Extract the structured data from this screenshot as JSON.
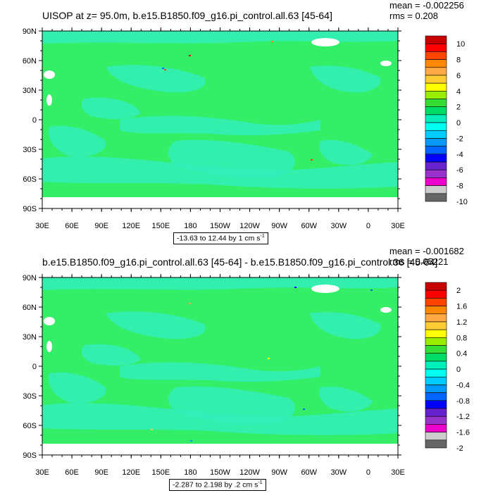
{
  "chart_data": [
    {
      "type": "heatmap",
      "title": "UISOP at z=  95.0m, b.e15.B1850.f09_g16.pi_control.all.63 [45-64]",
      "stats": {
        "mean": "mean = -0.002256",
        "rms": "rms = 0.208"
      },
      "x_tick_labels": [
        "30E",
        "60E",
        "90E",
        "120E",
        "150E",
        "180",
        "150W",
        "120W",
        "90W",
        "60W",
        "30W",
        "0",
        "30E"
      ],
      "y_tick_labels": [
        "90N",
        "60N",
        "30N",
        "0",
        "30S",
        "60S",
        "90S"
      ],
      "colorbar": {
        "labels": [
          "10",
          "8",
          "6",
          "4",
          "2",
          "0",
          "-2",
          "-4",
          "-6",
          "-8",
          "-10"
        ],
        "colors": [
          "#c80000",
          "#ff0000",
          "#ff4400",
          "#ff8800",
          "#ffaa44",
          "#ffcc33",
          "#ffff00",
          "#99ee00",
          "#33dd33",
          "#00dd66",
          "#00eebb",
          "#00ffee",
          "#00ccff",
          "#0099ff",
          "#0066ff",
          "#0000ff",
          "#6622cc",
          "#9933cc",
          "#ee00cc",
          "#cccccc",
          "#666666"
        ]
      },
      "range_text": "-13.63 to 12.44 by 1 cm s",
      "range_unit_exp": "-1",
      "field_colors": {
        "land_ocean_base": "#33ee66",
        "light_cyan": "#33eebb",
        "missing": "#ffffff"
      }
    },
    {
      "type": "heatmap",
      "title": "b.e15.B1850.f09_g16.pi_control.all.63 [45-64] - b.e15.B1850.f09_g16.pi_control.36 [45-64]",
      "stats": {
        "mean": "mean = -0.001682",
        "rms": "rms = 0.05221"
      },
      "x_tick_labels": [
        "30E",
        "60E",
        "90E",
        "120E",
        "150E",
        "180",
        "150W",
        "120W",
        "90W",
        "60W",
        "30W",
        "0",
        "30E"
      ],
      "y_tick_labels": [
        "90N",
        "60N",
        "30N",
        "0",
        "30S",
        "60S",
        "90S"
      ],
      "colorbar": {
        "labels": [
          "2",
          "1.6",
          "1.2",
          "0.8",
          "0.4",
          "0",
          "-0.4",
          "-0.8",
          "-1.2",
          "-1.6",
          "-2"
        ],
        "colors": [
          "#c80000",
          "#ff0000",
          "#ff4400",
          "#ff8800",
          "#ffaa44",
          "#ffcc33",
          "#ffff00",
          "#99ee00",
          "#33dd33",
          "#00dd66",
          "#00eebb",
          "#00ffee",
          "#00ccff",
          "#0099ff",
          "#0066ff",
          "#0000ff",
          "#6622cc",
          "#9933cc",
          "#ee00cc",
          "#cccccc",
          "#666666"
        ]
      },
      "range_text": "-2.287 to 2.198 by .2 cm s",
      "range_unit_exp": "-1",
      "field_colors": {
        "land_ocean_base": "#33ee66",
        "light_cyan": "#33eebb",
        "missing": "#ffffff"
      }
    }
  ]
}
